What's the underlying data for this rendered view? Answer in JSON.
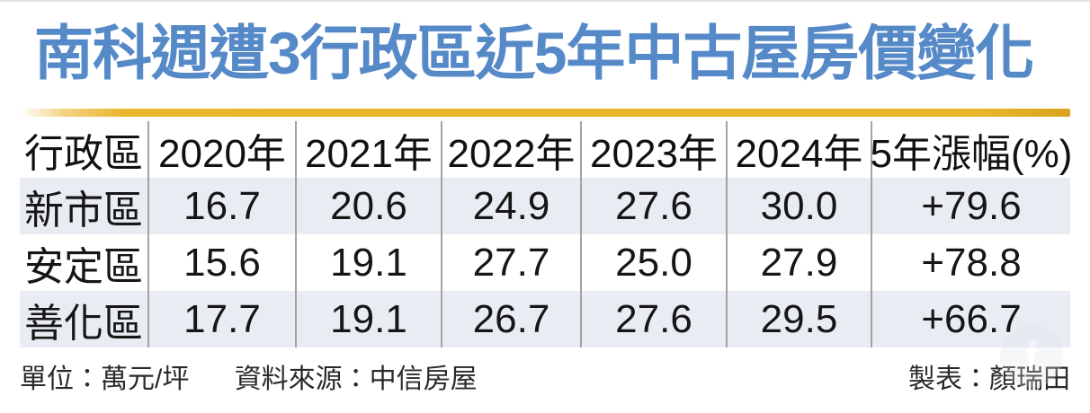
{
  "title": "南科週遭3行政區近5年中古屋房價變化",
  "colors": {
    "title_blue": "#5589c7",
    "accent_yellow": "#e9b32a",
    "row_shade": "#e9edf3",
    "divider_gray": "#a3a3a3",
    "text_dark": "#161616"
  },
  "chart_data": {
    "type": "table",
    "title": "南科週遭3行政區近5年中古屋房價變化",
    "unit": "萬元/坪",
    "source": "中信房屋",
    "columns": [
      "行政區",
      "2020年",
      "2021年",
      "2022年",
      "2023年",
      "2024年",
      "5年漲幅(%)"
    ],
    "years": [
      2020,
      2021,
      2022,
      2023,
      2024
    ],
    "series": [
      {
        "name": "新市區",
        "values": [
          16.7,
          20.6,
          24.9,
          27.6,
          30.0
        ],
        "change_pct": 79.6
      },
      {
        "name": "安定區",
        "values": [
          15.6,
          19.1,
          27.7,
          25.0,
          27.9
        ],
        "change_pct": 78.8
      },
      {
        "name": "善化區",
        "values": [
          17.7,
          19.1,
          26.7,
          27.6,
          29.5
        ],
        "change_pct": 66.7
      }
    ],
    "display_rows": [
      [
        "新市區",
        "16.7",
        "20.6",
        "24.9",
        "27.6",
        "30.0",
        "+79.6"
      ],
      [
        "安定區",
        "15.6",
        "19.1",
        "27.7",
        "25.0",
        "27.9",
        "+78.8"
      ],
      [
        "善化區",
        "17.7",
        "19.1",
        "26.7",
        "27.6",
        "29.5",
        "+66.7"
      ]
    ]
  },
  "footer": {
    "unit_label": "單位：萬元/坪",
    "source_label": "資料來源：中信房屋",
    "credit_label": "製表：顏瑞田"
  },
  "watermark_glyph": "f"
}
